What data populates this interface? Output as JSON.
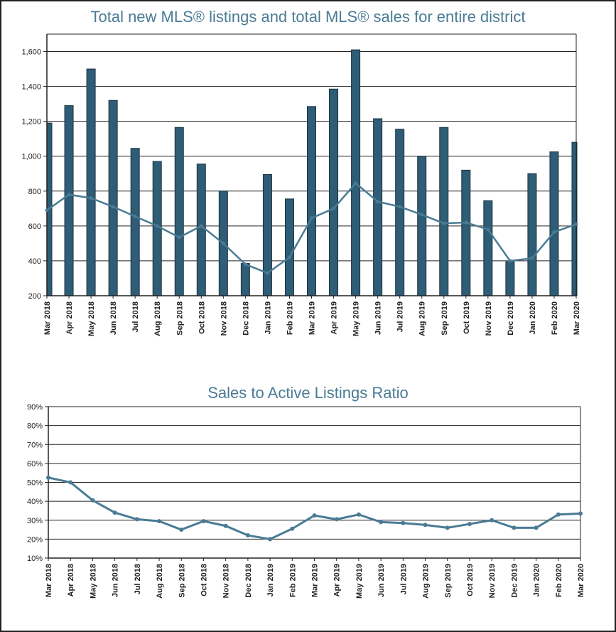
{
  "chart_data": [
    {
      "type": "bar",
      "title": "Total new MLS® listings and total MLS® sales for entire district",
      "categories": [
        "Mar 2018",
        "Apr 2018",
        "May 2018",
        "Jun 2018",
        "Jul 2018",
        "Aug 2018",
        "Sep 2018",
        "Oct 2018",
        "Nov 2018",
        "Dec 2018",
        "Jan 2019",
        "Feb 2019",
        "Mar 2019",
        "Apr 2019",
        "May 2019",
        "Jun 2019",
        "Jul 2019",
        "Aug 2019",
        "Sep 2019",
        "Oct 2019",
        "Nov 2019",
        "Dec 2019",
        "Jan 2020",
        "Feb 2020",
        "Mar 2020"
      ],
      "series": [
        {
          "values": [
            1190,
            1290,
            1500,
            1320,
            1045,
            970,
            1165,
            955,
            800,
            385,
            895,
            755,
            1285,
            1385,
            1610,
            1215,
            1155,
            1000,
            1165,
            920,
            745,
            395,
            900,
            1025,
            1080
          ]
        },
        {
          "values": [
            690,
            780,
            760,
            710,
            655,
            600,
            535,
            600,
            500,
            380,
            330,
            420,
            645,
            700,
            845,
            740,
            710,
            665,
            615,
            620,
            580,
            400,
            415,
            565,
            610
          ]
        }
      ],
      "ylim": [
        200,
        1700
      ],
      "yticks": [
        "200",
        "400",
        "600",
        "800",
        "1,000",
        "1,200",
        "1,400",
        "1,600"
      ],
      "colors": {
        "bar": "#2e5d75",
        "line": "#4a7b95"
      },
      "grid": true
    },
    {
      "type": "line",
      "title": "Sales to Active Listings Ratio",
      "categories": [
        "Mar 2018",
        "Apr 2018",
        "May 2018",
        "Jun 2018",
        "Jul 2018",
        "Aug 2018",
        "Sep 2018",
        "Oct 2018",
        "Nov 2018",
        "Dec 2018",
        "Jan 2019",
        "Feb 2019",
        "Mar 2019",
        "Apr 2019",
        "May 2019",
        "Jun 2019",
        "Jul 2019",
        "Aug 2019",
        "Sep 2019",
        "Oct 2019",
        "Nov 2019",
        "Dec 2019",
        "Jan 2020",
        "Feb 2020",
        "Mar 2020"
      ],
      "series": [
        {
          "values": [
            52.5,
            50,
            40.5,
            34,
            30.5,
            29.5,
            25,
            29.5,
            27,
            22,
            20,
            25.5,
            32.5,
            30.5,
            33,
            29,
            28.5,
            27.5,
            26,
            28,
            30,
            26,
            26,
            33,
            33.5
          ]
        }
      ],
      "ylim": [
        10,
        90
      ],
      "yticks": [
        "10%",
        "20%",
        "30%",
        "40%",
        "50%",
        "60%",
        "70%",
        "80%",
        "90%"
      ],
      "colors": {
        "line": "#4a7b95"
      },
      "grid": true
    }
  ]
}
